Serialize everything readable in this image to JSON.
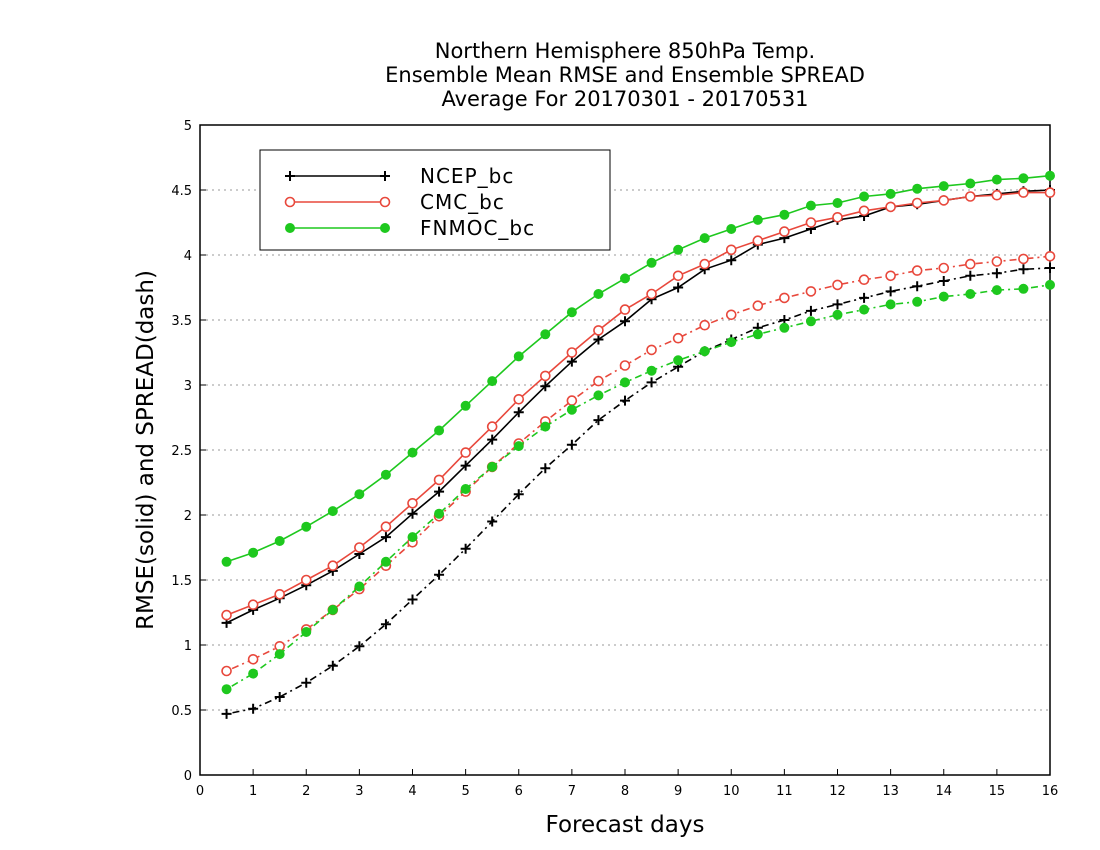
{
  "chart_data": {
    "type": "line",
    "title": [
      "Northern Hemisphere 850hPa Temp.",
      "Ensemble Mean RMSE and Ensemble SPREAD",
      "Average For 20170301 - 20170531"
    ],
    "xlabel": "Forecast days",
    "ylabel": "RMSE(solid) and SPREAD(dash)",
    "xlim": [
      0,
      16
    ],
    "ylim": [
      0,
      5
    ],
    "xticks": [
      "0",
      "1",
      "2",
      "3",
      "4",
      "5",
      "6",
      "7",
      "8",
      "9",
      "10",
      "11",
      "12",
      "13",
      "14",
      "15",
      "16"
    ],
    "yticks": [
      "0",
      "0.5",
      "1",
      "1.5",
      "2",
      "2.5",
      "3",
      "3.5",
      "4",
      "4.5",
      "5"
    ],
    "grid": true,
    "legend_position": "top-left",
    "x": [
      0.5,
      1,
      1.5,
      2,
      2.5,
      3,
      3.5,
      4,
      4.5,
      5,
      5.5,
      6,
      6.5,
      7,
      7.5,
      8,
      8.5,
      9,
      9.5,
      10,
      10.5,
      11,
      11.5,
      12,
      12.5,
      13,
      13.5,
      14,
      14.5,
      15,
      15.5,
      16
    ],
    "series": [
      {
        "name": "NCEP_bc",
        "color": "#000000",
        "marker": "plus",
        "style": "solid",
        "values": [
          1.17,
          1.27,
          1.36,
          1.46,
          1.57,
          1.7,
          1.83,
          2.01,
          2.18,
          2.38,
          2.58,
          2.79,
          2.99,
          3.18,
          3.35,
          3.49,
          3.66,
          3.75,
          3.89,
          3.96,
          4.08,
          4.13,
          4.2,
          4.27,
          4.3,
          4.37,
          4.39,
          4.42,
          4.45,
          4.47,
          4.49,
          4.5
        ]
      },
      {
        "name": "CMC_bc",
        "color": "#e8483c",
        "marker": "open-circle",
        "style": "solid",
        "values": [
          1.23,
          1.31,
          1.39,
          1.5,
          1.61,
          1.75,
          1.91,
          2.09,
          2.27,
          2.48,
          2.68,
          2.89,
          3.07,
          3.25,
          3.42,
          3.58,
          3.7,
          3.84,
          3.93,
          4.04,
          4.11,
          4.18,
          4.25,
          4.29,
          4.34,
          4.37,
          4.4,
          4.42,
          4.45,
          4.46,
          4.48,
          4.48
        ]
      },
      {
        "name": "FNMOC_bc",
        "color": "#1ec81e",
        "marker": "filled-circle",
        "style": "solid",
        "values": [
          1.64,
          1.71,
          1.8,
          1.91,
          2.03,
          2.16,
          2.31,
          2.48,
          2.65,
          2.84,
          3.03,
          3.22,
          3.39,
          3.56,
          3.7,
          3.82,
          3.94,
          4.04,
          4.13,
          4.2,
          4.27,
          4.31,
          4.38,
          4.4,
          4.45,
          4.47,
          4.51,
          4.53,
          4.55,
          4.58,
          4.59,
          4.61
        ]
      },
      {
        "name": "",
        "color": "#000000",
        "marker": "plus",
        "style": "dash",
        "values": [
          0.47,
          0.51,
          0.6,
          0.71,
          0.84,
          0.99,
          1.16,
          1.35,
          1.54,
          1.74,
          1.95,
          2.16,
          2.36,
          2.54,
          2.73,
          2.88,
          3.02,
          3.14,
          3.26,
          3.35,
          3.44,
          3.5,
          3.57,
          3.62,
          3.67,
          3.72,
          3.76,
          3.8,
          3.84,
          3.86,
          3.89,
          3.9
        ]
      },
      {
        "name": "",
        "color": "#e8483c",
        "marker": "open-circle",
        "style": "dash",
        "values": [
          0.8,
          0.89,
          0.99,
          1.12,
          1.27,
          1.43,
          1.61,
          1.79,
          1.99,
          2.18,
          2.37,
          2.55,
          2.72,
          2.88,
          3.03,
          3.15,
          3.27,
          3.36,
          3.46,
          3.54,
          3.61,
          3.67,
          3.72,
          3.77,
          3.81,
          3.84,
          3.88,
          3.9,
          3.93,
          3.95,
          3.97,
          3.99
        ]
      },
      {
        "name": "",
        "color": "#1ec81e",
        "marker": "filled-circle",
        "style": "dash",
        "values": [
          0.66,
          0.78,
          0.93,
          1.1,
          1.27,
          1.45,
          1.64,
          1.83,
          2.01,
          2.2,
          2.37,
          2.53,
          2.68,
          2.81,
          2.92,
          3.02,
          3.11,
          3.19,
          3.26,
          3.33,
          3.39,
          3.44,
          3.49,
          3.54,
          3.58,
          3.62,
          3.64,
          3.68,
          3.7,
          3.73,
          3.74,
          3.77
        ]
      }
    ]
  }
}
